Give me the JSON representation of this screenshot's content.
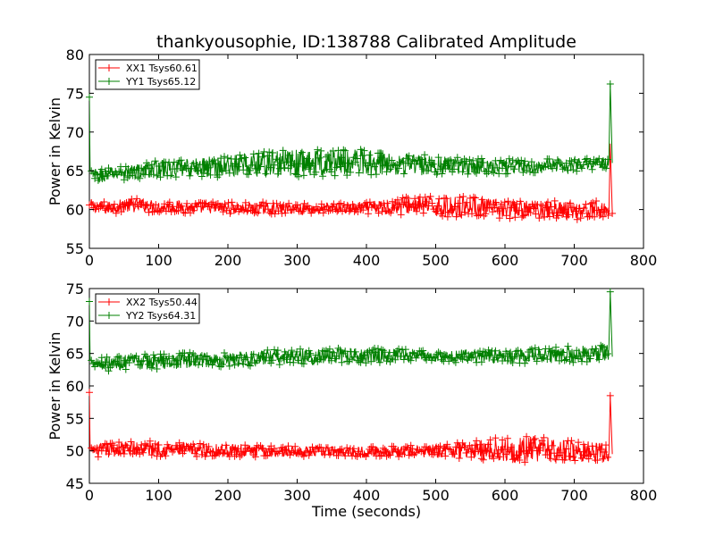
{
  "chart_data": [
    {
      "type": "line",
      "title": "thankyousophie, ID:138788 Calibrated Amplitude",
      "xlabel": "",
      "ylabel": "Power in Kelvin",
      "xlim": [
        0,
        800
      ],
      "ylim": [
        55,
        80
      ],
      "xticks": [
        "0",
        "100",
        "200",
        "300",
        "400",
        "500",
        "600",
        "700",
        "800"
      ],
      "yticks": [
        "55",
        "60",
        "65",
        "70",
        "75",
        "80"
      ],
      "grid": false,
      "legend_position": "top-left",
      "series": [
        {
          "name": "XX1 Tsys60.61",
          "color": "#ff0000",
          "marker": "+",
          "x": [
            0,
            25,
            50,
            75,
            100,
            125,
            150,
            175,
            200,
            225,
            250,
            275,
            300,
            325,
            350,
            375,
            400,
            425,
            450,
            475,
            500,
            525,
            550,
            575,
            600,
            625,
            650,
            675,
            700,
            725,
            750,
            752,
            755
          ],
          "y": [
            60.6,
            60.2,
            60.5,
            60.6,
            60.3,
            60.4,
            60.2,
            60.3,
            60.2,
            60.1,
            60.2,
            60.1,
            60.2,
            60.0,
            60.2,
            60.1,
            60.2,
            60.3,
            60.5,
            60.6,
            60.4,
            60.3,
            60.5,
            60.2,
            60.0,
            60.0,
            60.1,
            60.0,
            59.9,
            59.9,
            60.0,
            68.5,
            59.5
          ],
          "spread": [
            0.8,
            0.8,
            0.9,
            0.9,
            0.8,
            0.8,
            0.8,
            0.8,
            0.8,
            0.8,
            0.8,
            0.7,
            0.7,
            0.7,
            0.7,
            0.7,
            0.8,
            1.0,
            1.2,
            1.2,
            1.3,
            1.4,
            1.3,
            1.3,
            1.2,
            1.2,
            1.2,
            1.2,
            1.2,
            1.2,
            1.2,
            0,
            0
          ]
        },
        {
          "name": "YY1 Tsys65.12",
          "color": "#008000",
          "marker": "+",
          "x": [
            0,
            1,
            10,
            25,
            50,
            75,
            100,
            125,
            150,
            175,
            200,
            225,
            250,
            275,
            300,
            325,
            350,
            375,
            400,
            425,
            450,
            475,
            500,
            525,
            550,
            575,
            600,
            625,
            650,
            675,
            700,
            725,
            750,
            752,
            755
          ],
          "y": [
            74.5,
            65.0,
            64.3,
            64.5,
            64.8,
            65.0,
            65.3,
            65.2,
            65.4,
            65.6,
            65.6,
            65.8,
            65.9,
            66.0,
            66.0,
            66.1,
            66.1,
            66.2,
            66.2,
            66.1,
            66.0,
            65.8,
            65.7,
            65.7,
            65.6,
            65.6,
            65.6,
            65.6,
            65.6,
            65.7,
            65.8,
            65.9,
            66.0,
            76.2,
            66.0
          ],
          "spread": [
            0,
            0,
            1.0,
            0.9,
            1.0,
            1.0,
            1.1,
            1.1,
            1.3,
            1.4,
            1.5,
            1.6,
            1.7,
            1.8,
            1.8,
            1.8,
            1.8,
            1.8,
            1.8,
            1.6,
            1.5,
            1.4,
            1.3,
            1.2,
            1.1,
            1.0,
            1.0,
            0.9,
            0.9,
            0.9,
            0.9,
            0.8,
            0.8,
            0,
            0
          ]
        }
      ]
    },
    {
      "type": "line",
      "title": "",
      "xlabel": "Time (seconds)",
      "ylabel": "Power in Kelvin",
      "xlim": [
        0,
        800
      ],
      "ylim": [
        45,
        75
      ],
      "xticks": [
        "0",
        "100",
        "200",
        "300",
        "400",
        "500",
        "600",
        "700",
        "800"
      ],
      "yticks": [
        "45",
        "50",
        "55",
        "60",
        "65",
        "70",
        "75"
      ],
      "grid": false,
      "legend_position": "top-left",
      "series": [
        {
          "name": "XX2 Tsys50.44",
          "color": "#ff0000",
          "marker": "+",
          "x": [
            0,
            1,
            10,
            25,
            50,
            75,
            100,
            125,
            150,
            175,
            200,
            225,
            250,
            275,
            300,
            325,
            350,
            375,
            400,
            425,
            450,
            475,
            500,
            525,
            550,
            575,
            600,
            625,
            650,
            675,
            700,
            725,
            750,
            752,
            755
          ],
          "y": [
            59.0,
            50.4,
            50.0,
            50.2,
            50.3,
            50.4,
            50.3,
            50.2,
            50.2,
            50.1,
            50.1,
            50.0,
            50.0,
            49.9,
            49.9,
            49.9,
            49.9,
            49.9,
            49.9,
            49.9,
            49.9,
            49.9,
            50.0,
            50.1,
            50.1,
            50.2,
            50.2,
            50.2,
            50.3,
            50.1,
            50.0,
            49.9,
            49.8,
            58.5,
            49.5
          ],
          "spread": [
            0,
            0,
            1.0,
            1.1,
            1.2,
            1.2,
            1.2,
            1.1,
            1.1,
            1.1,
            1.0,
            1.0,
            0.9,
            0.9,
            0.8,
            0.8,
            0.8,
            0.8,
            0.8,
            0.8,
            0.9,
            1.0,
            1.0,
            1.2,
            1.4,
            1.7,
            1.9,
            2.0,
            2.0,
            1.8,
            1.7,
            1.6,
            1.5,
            0,
            0
          ]
        },
        {
          "name": "YY2 Tsys64.31",
          "color": "#008000",
          "marker": "+",
          "x": [
            0,
            1,
            10,
            25,
            50,
            75,
            100,
            125,
            150,
            175,
            200,
            225,
            250,
            275,
            300,
            325,
            350,
            375,
            400,
            425,
            450,
            475,
            500,
            525,
            550,
            575,
            600,
            625,
            650,
            675,
            700,
            725,
            750,
            752,
            755
          ],
          "y": [
            73.0,
            64.0,
            63.5,
            63.4,
            63.6,
            63.7,
            63.8,
            63.8,
            64.0,
            64.0,
            64.1,
            64.2,
            64.3,
            64.4,
            64.5,
            64.5,
            64.6,
            64.6,
            64.7,
            64.7,
            64.7,
            64.6,
            64.6,
            64.6,
            64.6,
            64.6,
            64.6,
            64.6,
            64.7,
            64.8,
            64.9,
            65.0,
            65.0,
            74.5,
            64.5
          ],
          "spread": [
            0,
            0,
            1.0,
            1.1,
            1.2,
            1.2,
            1.2,
            1.2,
            1.2,
            1.2,
            1.2,
            1.2,
            1.2,
            1.2,
            1.2,
            1.2,
            1.2,
            1.2,
            1.2,
            1.1,
            1.0,
            0.9,
            0.9,
            1.0,
            1.0,
            1.1,
            1.1,
            1.2,
            1.2,
            1.3,
            1.3,
            1.3,
            1.3,
            0,
            0
          ]
        }
      ]
    }
  ]
}
